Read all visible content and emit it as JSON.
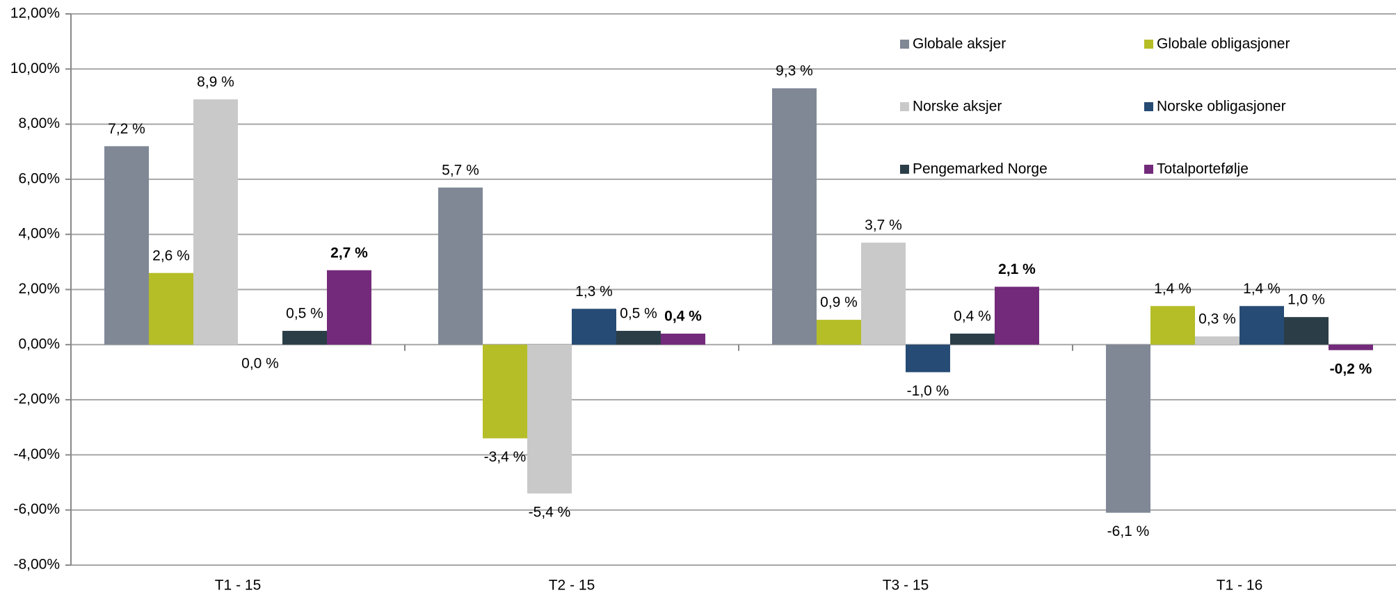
{
  "chart_data": {
    "type": "bar",
    "categories": [
      "T1 - 15",
      "T2 - 15",
      "T3 - 15",
      "T1 - 16"
    ],
    "series": [
      {
        "name": "Globale aksjer",
        "color": "#808896",
        "values": [
          7.2,
          5.7,
          9.3,
          -6.1
        ],
        "value_labels": [
          "7,2 %",
          "5,7 %",
          "9,3 %",
          "-6,1 %"
        ]
      },
      {
        "name": "Globale obligasjoner",
        "color": "#b5bd27",
        "values": [
          2.6,
          -3.4,
          0.9,
          1.4
        ],
        "value_labels": [
          "2,6 %",
          "-3,4 %",
          "0,9 %",
          "1,4 %"
        ]
      },
      {
        "name": "Norske aksjer",
        "color": "#c8c9c8",
        "values": [
          8.9,
          -5.4,
          3.7,
          0.3
        ],
        "value_labels": [
          "8,9 %",
          "-5,4 %",
          "3,7 %",
          "0,3 %"
        ]
      },
      {
        "name": "Norske obligasjoner",
        "color": "#264b74",
        "values": [
          0.0,
          1.3,
          -1.0,
          1.4
        ],
        "value_labels": [
          "0,0 %",
          "1,3 %",
          "-1,0 %",
          "1,4 %"
        ]
      },
      {
        "name": "Pengemarked Norge",
        "color": "#2b3e48",
        "values": [
          0.5,
          0.5,
          0.4,
          1.0
        ],
        "value_labels": [
          "0,5 %",
          "0,5 %",
          "0,4 %",
          "1,0 %"
        ]
      },
      {
        "name": "Totalportefølje",
        "color": "#732a7a",
        "values": [
          2.7,
          0.4,
          2.1,
          -0.2
        ],
        "value_labels": [
          "2,7 %",
          "0,4 %",
          "2,1 %",
          "-0,2 %"
        ]
      }
    ],
    "ylim": [
      -8,
      12
    ],
    "yticks": [
      {
        "value": -8,
        "label": "-8,00%"
      },
      {
        "value": -6,
        "label": "-6,00%"
      },
      {
        "value": -4,
        "label": "-4,00%"
      },
      {
        "value": -2,
        "label": "-2,00%"
      },
      {
        "value": 0,
        "label": "0,00%"
      },
      {
        "value": 2,
        "label": "2,00%"
      },
      {
        "value": 4,
        "label": "4,00%"
      },
      {
        "value": 6,
        "label": "6,00%"
      },
      {
        "value": 8,
        "label": "8,00%"
      },
      {
        "value": 10,
        "label": "10,00%"
      },
      {
        "value": 12,
        "label": "12,00%"
      }
    ],
    "grid": true
  }
}
